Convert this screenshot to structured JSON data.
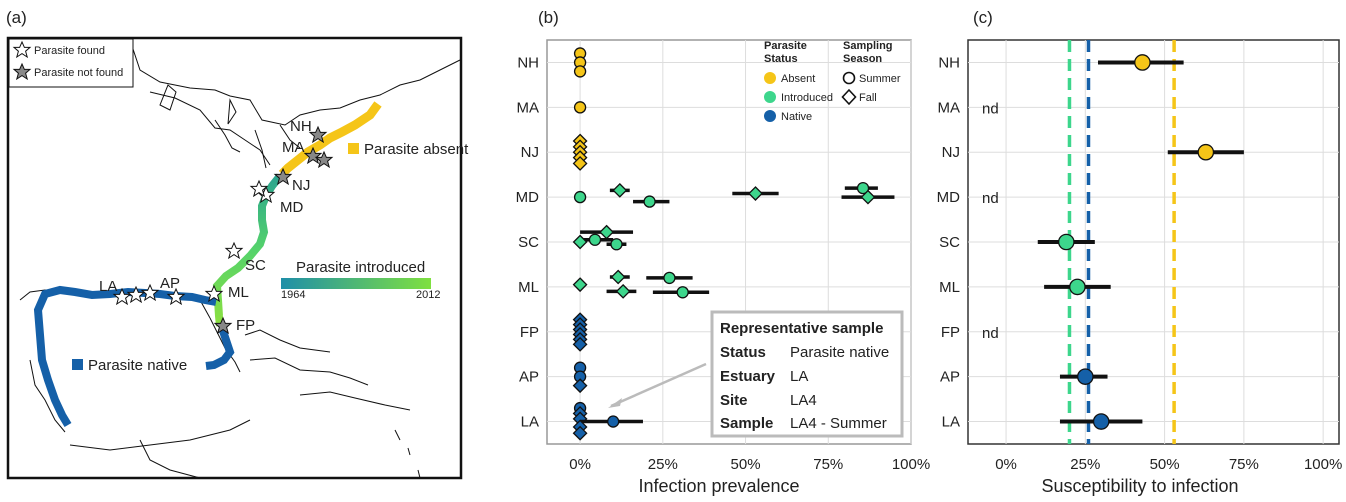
{
  "panels": {
    "a": "(a)",
    "b": "(b)",
    "c": "(c)"
  },
  "colors": {
    "absent": "#F5C518",
    "introduced": "#3DD68C",
    "native": "#1560A8",
    "grad_start": "#1F8FA8",
    "grad_end": "#7FE040",
    "grid": "#DDDDDD"
  },
  "map": {
    "legend_found": "Parasite found",
    "legend_not_found": "Parasite not found",
    "absent_label": "Parasite absent",
    "native_label": "Parasite native",
    "introduced_label": "Parasite introduced",
    "year_start": "1964",
    "year_end": "2012",
    "site_labels": [
      "NH",
      "MA",
      "NJ",
      "MD",
      "SC",
      "ML",
      "FP",
      "AP",
      "LA"
    ]
  },
  "legend_b": {
    "status_title_1": "Parasite",
    "status_title_2": "Status",
    "status_items": [
      "Absent",
      "Introduced",
      "Native"
    ],
    "season_title_1": "Sampling",
    "season_title_2": "Season",
    "season_items": [
      "Summer",
      "Fall"
    ]
  },
  "rep_sample": {
    "title": "Representative sample",
    "rows": [
      {
        "k": "Status",
        "v": "Parasite native"
      },
      {
        "k": "Estuary",
        "v": "LA"
      },
      {
        "k": "Site",
        "v": "LA4"
      },
      {
        "k": "Sample",
        "v": "LA4 - Summer"
      }
    ]
  },
  "chart_data": [
    {
      "type": "scatter",
      "panel": "b",
      "xlabel": "Infection prevalence",
      "xlim": [
        -0.1,
        1.0
      ],
      "x_ticks": [
        "0%",
        "25%",
        "50%",
        "75%",
        "100%"
      ],
      "x_tick_values": [
        0,
        0.25,
        0.5,
        0.75,
        1.0
      ],
      "categories": [
        "NH",
        "MA",
        "NJ",
        "MD",
        "SC",
        "ML",
        "FP",
        "AP",
        "LA"
      ],
      "grid": true,
      "points": [
        {
          "site": "NH",
          "status": "absent",
          "season": "summer",
          "x": 0,
          "off": -0.2
        },
        {
          "site": "NH",
          "status": "absent",
          "season": "summer",
          "x": 0,
          "off": 0
        },
        {
          "site": "NH",
          "status": "absent",
          "season": "summer",
          "x": 0,
          "off": 0.2
        },
        {
          "site": "MA",
          "status": "absent",
          "season": "summer",
          "x": 0,
          "off": 0
        },
        {
          "site": "NJ",
          "status": "absent",
          "season": "fall",
          "x": 0,
          "off": -0.25
        },
        {
          "site": "NJ",
          "status": "absent",
          "season": "fall",
          "x": 0,
          "off": -0.12
        },
        {
          "site": "NJ",
          "status": "absent",
          "season": "fall",
          "x": 0,
          "off": 0
        },
        {
          "site": "NJ",
          "status": "absent",
          "season": "fall",
          "x": 0,
          "off": 0.12
        },
        {
          "site": "NJ",
          "status": "absent",
          "season": "fall",
          "x": 0,
          "off": 0.25
        },
        {
          "site": "MD",
          "status": "introduced",
          "season": "summer",
          "x": 0,
          "off": 0
        },
        {
          "site": "MD",
          "status": "introduced",
          "season": "fall",
          "x": 0.12,
          "off": -0.15,
          "lo": 0.09,
          "hi": 0.15
        },
        {
          "site": "MD",
          "status": "introduced",
          "season": "summer",
          "x": 0.21,
          "off": 0.1,
          "lo": 0.16,
          "hi": 0.27
        },
        {
          "site": "MD",
          "status": "introduced",
          "season": "fall",
          "x": 0.53,
          "off": -0.08,
          "lo": 0.46,
          "hi": 0.6
        },
        {
          "site": "MD",
          "status": "introduced",
          "season": "summer",
          "x": 0.855,
          "off": -0.2,
          "lo": 0.8,
          "hi": 0.9
        },
        {
          "site": "MD",
          "status": "introduced",
          "season": "fall",
          "x": 0.87,
          "off": 0.0,
          "lo": 0.79,
          "hi": 0.95
        },
        {
          "site": "SC",
          "status": "introduced",
          "season": "fall",
          "x": 0.08,
          "off": -0.22,
          "lo": 0.0,
          "hi": 0.16
        },
        {
          "site": "SC",
          "status": "introduced",
          "season": "summer",
          "x": 0.045,
          "off": -0.05,
          "lo": 0.0,
          "hi": 0.1
        },
        {
          "site": "SC",
          "status": "introduced",
          "season": "fall",
          "x": 0,
          "off": 0,
          "lo": 0.0,
          "hi": 0.0
        },
        {
          "site": "SC",
          "status": "introduced",
          "season": "summer",
          "x": 0.11,
          "off": 0.05,
          "lo": 0.08,
          "hi": 0.14
        },
        {
          "site": "ML",
          "status": "introduced",
          "season": "fall",
          "x": 0.115,
          "off": -0.22,
          "lo": 0.09,
          "hi": 0.15
        },
        {
          "site": "ML",
          "status": "introduced",
          "season": "summer",
          "x": 0.27,
          "off": -0.2,
          "lo": 0.2,
          "hi": 0.34
        },
        {
          "site": "ML",
          "status": "introduced",
          "season": "fall",
          "x": 0,
          "off": -0.05
        },
        {
          "site": "ML",
          "status": "introduced",
          "season": "fall",
          "x": 0.13,
          "off": 0.1,
          "lo": 0.08,
          "hi": 0.17
        },
        {
          "site": "ML",
          "status": "introduced",
          "season": "summer",
          "x": 0.31,
          "off": 0.12,
          "lo": 0.22,
          "hi": 0.39
        },
        {
          "site": "FP",
          "status": "native",
          "season": "fall",
          "x": 0,
          "off": -0.27
        },
        {
          "site": "FP",
          "status": "native",
          "season": "fall",
          "x": 0,
          "off": -0.16
        },
        {
          "site": "FP",
          "status": "native",
          "season": "fall",
          "x": 0,
          "off": -0.05
        },
        {
          "site": "FP",
          "status": "native",
          "season": "fall",
          "x": 0,
          "off": 0.06
        },
        {
          "site": "FP",
          "status": "native",
          "season": "fall",
          "x": 0,
          "off": 0.17
        },
        {
          "site": "FP",
          "status": "native",
          "season": "fall",
          "x": 0,
          "off": 0.28
        },
        {
          "site": "AP",
          "status": "native",
          "season": "summer",
          "x": 0,
          "off": -0.2
        },
        {
          "site": "AP",
          "status": "native",
          "season": "summer",
          "x": 0,
          "off": 0
        },
        {
          "site": "AP",
          "status": "native",
          "season": "fall",
          "x": 0,
          "off": 0.2
        },
        {
          "site": "LA",
          "status": "native",
          "season": "summer",
          "x": 0,
          "off": -0.3
        },
        {
          "site": "LA",
          "status": "native",
          "season": "fall",
          "x": 0,
          "off": -0.18
        },
        {
          "site": "LA",
          "status": "native",
          "season": "fall",
          "x": 0,
          "off": -0.06
        },
        {
          "site": "LA",
          "status": "native",
          "season": "summer",
          "x": 0.1,
          "off": 0,
          "lo": 0.0,
          "hi": 0.19
        },
        {
          "site": "LA",
          "status": "native",
          "season": "fall",
          "x": 0,
          "off": 0.12
        },
        {
          "site": "LA",
          "status": "native",
          "season": "fall",
          "x": 0,
          "off": 0.26
        }
      ]
    },
    {
      "type": "scatter",
      "panel": "c",
      "xlabel": "Susceptibility to infection",
      "xlim": [
        -0.12,
        1.05
      ],
      "x_ticks": [
        "0%",
        "25%",
        "50%",
        "75%",
        "100%"
      ],
      "x_tick_values": [
        0,
        0.25,
        0.5,
        0.75,
        1.0
      ],
      "categories": [
        "NH",
        "MA",
        "NJ",
        "MD",
        "SC",
        "ML",
        "FP",
        "AP",
        "LA"
      ],
      "grid": true,
      "not_determined_label": "nd",
      "not_determined": [
        "MA",
        "MD",
        "FP"
      ],
      "reference_lines": [
        {
          "status": "introduced",
          "x": 0.2
        },
        {
          "status": "native",
          "x": 0.26
        },
        {
          "status": "absent",
          "x": 0.53
        }
      ],
      "points": [
        {
          "site": "NH",
          "status": "absent",
          "x": 0.43,
          "lo": 0.29,
          "hi": 0.56
        },
        {
          "site": "NJ",
          "status": "absent",
          "x": 0.63,
          "lo": 0.51,
          "hi": 0.75
        },
        {
          "site": "SC",
          "status": "introduced",
          "x": 0.19,
          "lo": 0.1,
          "hi": 0.28
        },
        {
          "site": "ML",
          "status": "introduced",
          "x": 0.225,
          "lo": 0.12,
          "hi": 0.33
        },
        {
          "site": "AP",
          "status": "native",
          "x": 0.25,
          "lo": 0.17,
          "hi": 0.32
        },
        {
          "site": "LA",
          "status": "native",
          "x": 0.3,
          "lo": 0.17,
          "hi": 0.43
        }
      ]
    }
  ]
}
